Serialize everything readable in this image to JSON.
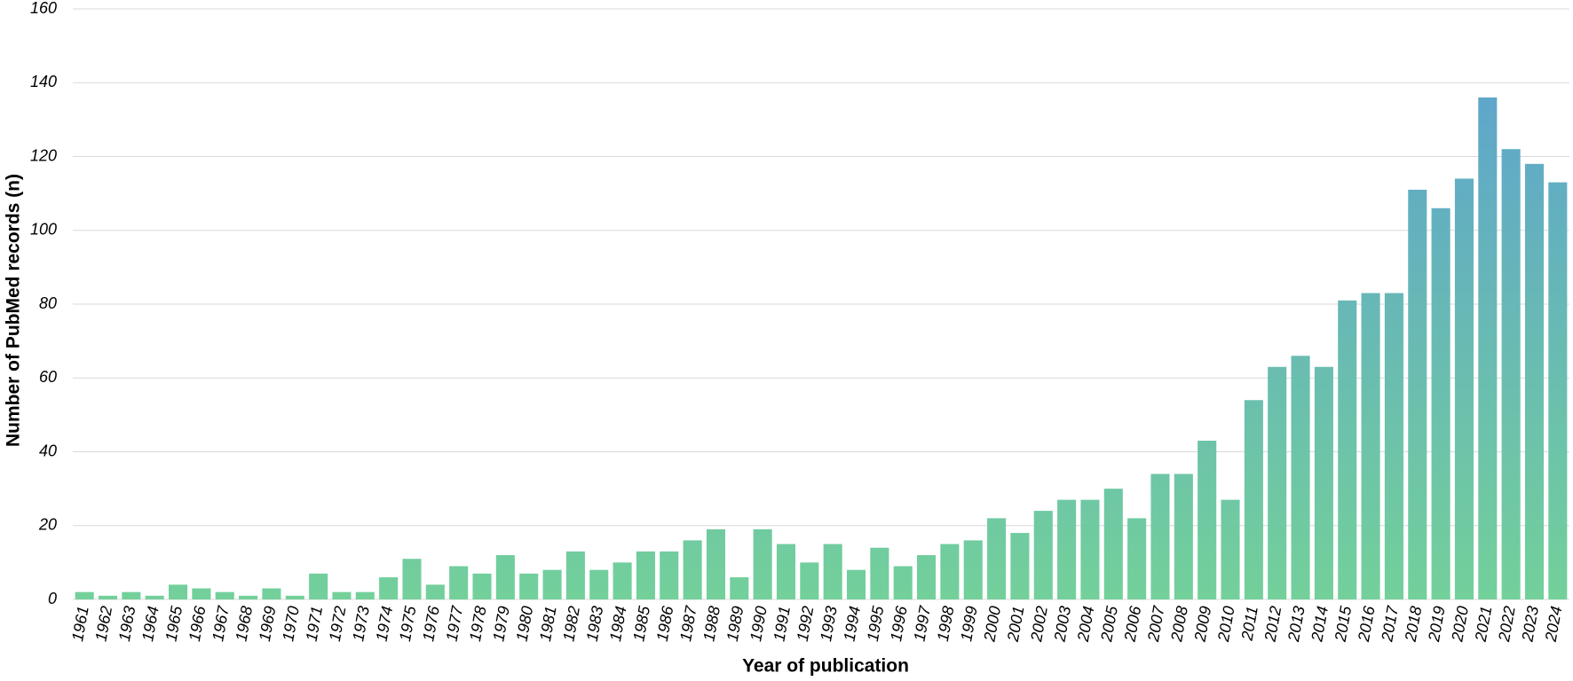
{
  "chart_data": {
    "type": "bar",
    "x_label": "Year of publication",
    "y_label": "Number of PubMed records (n)",
    "categories": [
      "1961",
      "1962",
      "1963",
      "1964",
      "1965",
      "1966",
      "1967",
      "1968",
      "1969",
      "1970",
      "1971",
      "1972",
      "1973",
      "1974",
      "1975",
      "1976",
      "1977",
      "1978",
      "1979",
      "1980",
      "1981",
      "1982",
      "1983",
      "1984",
      "1985",
      "1986",
      "1987",
      "1988",
      "1989",
      "1990",
      "1991",
      "1992",
      "1993",
      "1994",
      "1995",
      "1996",
      "1997",
      "1998",
      "1999",
      "2000",
      "2001",
      "2002",
      "2003",
      "2004",
      "2005",
      "2006",
      "2007",
      "2008",
      "2009",
      "2010",
      "2011",
      "2012",
      "2013",
      "2014",
      "2015",
      "2016",
      "2017",
      "2018",
      "2019",
      "2020",
      "2021",
      "2022",
      "2023",
      "2024"
    ],
    "values": [
      2,
      1,
      2,
      1,
      4,
      3,
      2,
      1,
      3,
      1,
      7,
      2,
      2,
      6,
      11,
      4,
      9,
      7,
      12,
      7,
      8,
      13,
      8,
      10,
      13,
      13,
      16,
      19,
      6,
      19,
      15,
      10,
      15,
      8,
      14,
      9,
      12,
      15,
      16,
      22,
      18,
      24,
      27,
      27,
      30,
      22,
      34,
      34,
      43,
      27,
      54,
      63,
      66,
      63,
      81,
      83,
      83,
      111,
      106,
      114,
      136,
      122,
      118,
      113
    ],
    "color_top": "#5b9fd3",
    "color_bottom": "#73d09a",
    "ylim": [
      0,
      160
    ],
    "yticks": [
      0,
      20,
      40,
      60,
      80,
      100,
      120,
      140,
      160
    ],
    "grid": true
  }
}
